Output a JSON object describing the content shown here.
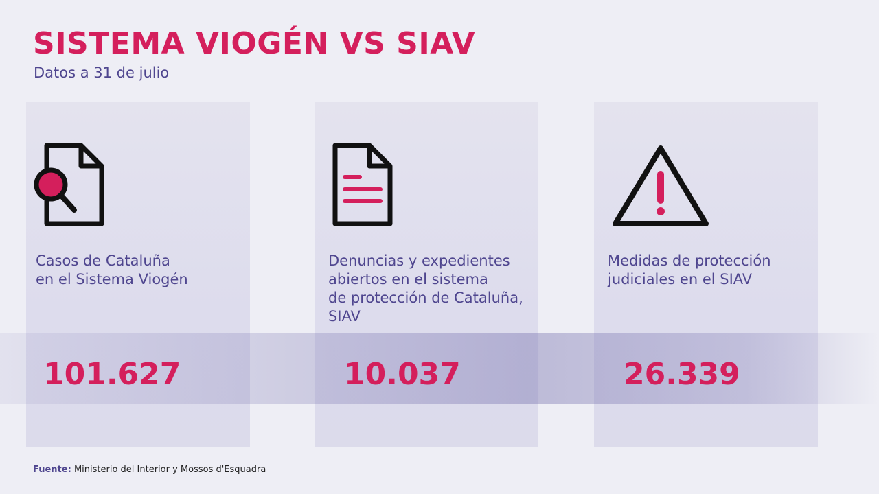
{
  "header": {
    "title": "SISTEMA VIOGÉN VS SIAV",
    "subtitle": "Datos a 31 de julio"
  },
  "cards": [
    {
      "icon": "document-search-icon",
      "label": "Casos de Cataluña\nen el Sistema Viogén",
      "value": "101.627"
    },
    {
      "icon": "document-icon",
      "label": "Denuncias y expedientes\nabiertos en el sistema\nde protección de Cataluña,\nSIAV",
      "value": "10.037"
    },
    {
      "icon": "warning-icon",
      "label": "Medidas de protección\njudiciales en el SIAV",
      "value": "26.339"
    }
  ],
  "source": {
    "label": "Fuente:",
    "text": "Ministerio del Interior y Mossos d'Esquadra"
  },
  "colors": {
    "accent": "#d41f5c",
    "text": "#4f468f",
    "icon_stroke": "#111111",
    "background": "#eeeef5"
  }
}
